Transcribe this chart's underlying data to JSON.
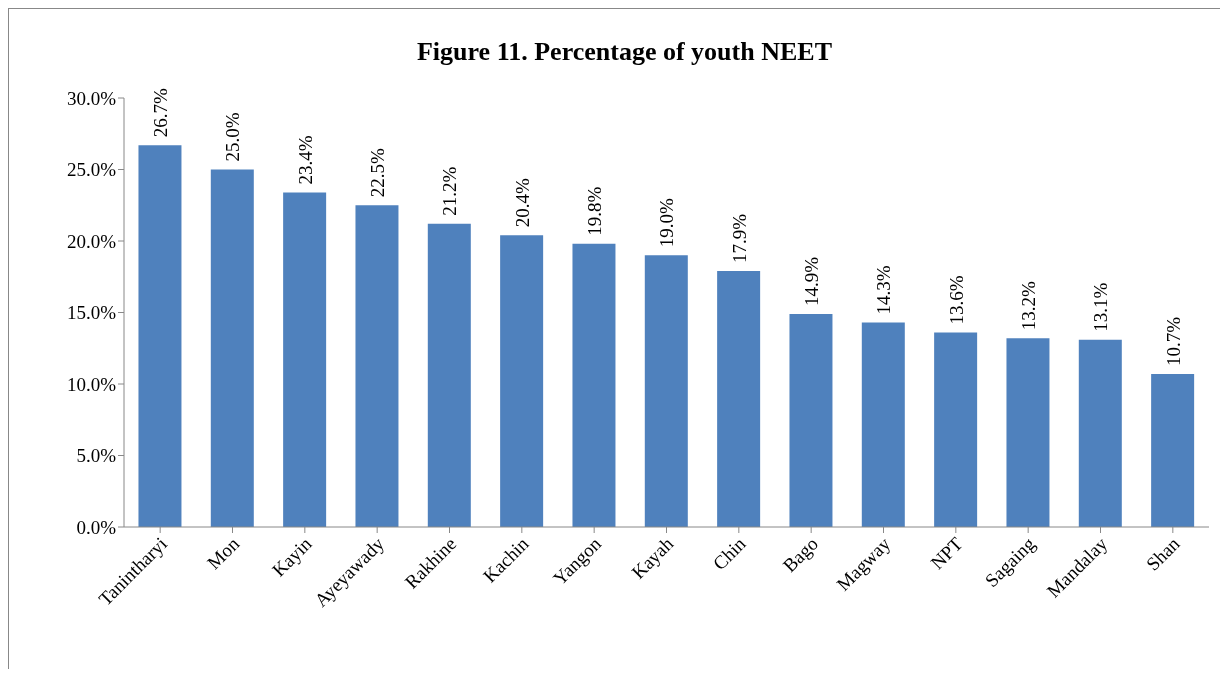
{
  "chart_data": {
    "type": "bar",
    "title": "Figure 11. Percentage of youth NEET",
    "categories": [
      "Tanintharyi",
      "Mon",
      "Kayin",
      "Ayeyawady",
      "Rakhine",
      "Kachin",
      "Yangon",
      "Kayah",
      "Chin",
      "Bago",
      "Magway",
      "NPT",
      "Sagaing",
      "Mandalay",
      "Shan"
    ],
    "values": [
      26.7,
      25.0,
      23.4,
      22.5,
      21.2,
      20.4,
      19.8,
      19.0,
      17.9,
      14.9,
      14.3,
      13.6,
      13.2,
      13.1,
      10.7
    ],
    "value_labels": [
      "26.7%",
      "25.0%",
      "23.4%",
      "22.5%",
      "21.2%",
      "20.4%",
      "19.8%",
      "19.0%",
      "17.9%",
      "14.9%",
      "14.3%",
      "13.6%",
      "13.2%",
      "13.1%",
      "10.7%"
    ],
    "color": "#4f81bd",
    "ylim": [
      0,
      30
    ],
    "yticks": [
      {
        "value": 0,
        "label": "0.0%"
      },
      {
        "value": 5,
        "label": "5.0%"
      },
      {
        "value": 10,
        "label": "10.0%"
      },
      {
        "value": 15,
        "label": "15.0%"
      },
      {
        "value": 20,
        "label": "20.0%"
      },
      {
        "value": 25,
        "label": "25.0%"
      },
      {
        "value": 30,
        "label": "30.0%"
      }
    ],
    "grid": false,
    "legend": false
  }
}
